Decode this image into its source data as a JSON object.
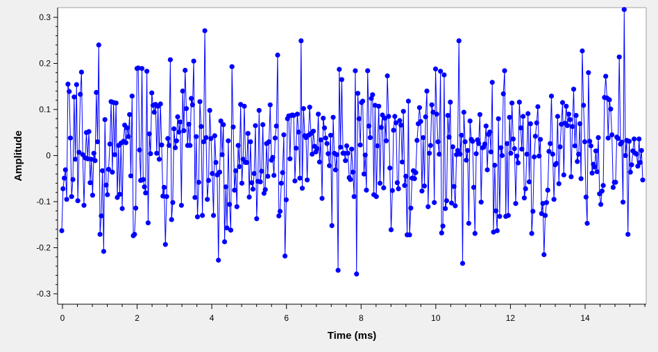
{
  "chart_data": {
    "type": "scatter",
    "title": "",
    "xlabel": "Time (ms)",
    "ylabel": "Amplitude",
    "xlim": [
      0,
      15.625
    ],
    "ylim": [
      -0.32,
      0.32
    ],
    "xticks": [
      "0",
      "2",
      "4",
      "6",
      "8",
      "10",
      "12",
      "14"
    ],
    "yticks": [
      "0.3",
      "0.2",
      "0.1",
      "0",
      "-0.1",
      "-0.2",
      "-0.3"
    ],
    "grid": false,
    "legend": "none",
    "colors": {
      "series": "#0000ff",
      "background": "#f0f0f0",
      "plot_background": "#ffffff",
      "axis": "#000000"
    },
    "series": [
      {
        "values": [
          -0.163,
          -0.072,
          -0.049,
          -0.031,
          -0.095,
          0.155,
          0.139,
          0.038,
          -0.089,
          -0.052,
          0.127,
          -0.008,
          0.154,
          -0.098,
          0.007,
          0.133,
          0.181,
          0.002,
          -0.108,
          -0.005,
          0.05,
          -0.007,
          0.052,
          -0.059,
          -0.008,
          -0.086,
          0.005,
          -0.011,
          0.137,
          0.03,
          0.24,
          -0.171,
          -0.131,
          -0.033,
          -0.208,
          0.078,
          -0.064,
          -0.085,
          -0.03,
          0.025,
          0.117,
          -0.036,
          0.115,
          0.002,
          0.114,
          -0.091,
          0.022,
          -0.084,
          0.027,
          -0.115,
          0.031,
          0.066,
          0.028,
          0.06,
          0.041,
          0.089,
          -0.044,
          0.129,
          -0.174,
          -0.171,
          -0.114,
          0.189,
          0.19,
          0.012,
          -0.054,
          0.189,
          -0.052,
          -0.068,
          -0.081,
          0.183,
          -0.146,
          0.047,
          0.004,
          0.136,
          0.109,
          0.094,
          0.111,
          0.005,
          0.107,
          -0.008,
          0.112,
          0.023,
          -0.088,
          -0.069,
          -0.193,
          -0.089,
          0.037,
          0.022,
          0.208,
          -0.139,
          -0.102,
          0.058,
          0.017,
          0.032,
          0.084,
          0.051,
          0.073,
          -0.108,
          0.14,
          0.054,
          0.185,
          0.102,
          0.022,
          0.068,
          0.022,
          0.124,
          0.11,
          0.205,
          -0.091,
          0.041,
          -0.133,
          -0.058,
          0.117,
          0.063,
          -0.13,
          0.03,
          0.271,
          0.039,
          -0.095,
          -0.054,
          0.098,
          0.037,
          -0.039,
          -0.13,
          0.043,
          -0.015,
          -0.042,
          -0.227,
          -0.036,
          0.075,
          0.002,
          0.067,
          -0.187,
          -0.068,
          -0.157,
          0.032,
          -0.106,
          -0.162,
          0.193,
          0.062,
          -0.075,
          -0.033,
          -0.111,
          0.022,
          -0.024,
          0.111,
          -0.06,
          -0.008,
          0.107,
          -0.015,
          -0.015,
          0.048,
          -0.09,
          0.03,
          -0.059,
          -0.073,
          -0.039,
          0.065,
          -0.137,
          -0.056,
          0.098,
          -0.057,
          -0.034,
          0.067,
          -0.082,
          -0.074,
          0.026,
          -0.045,
          0.03,
          0.11,
          -0.01,
          -0.004,
          -0.043,
          0.038,
          0.064,
          0.218,
          -0.131,
          -0.121,
          -0.06,
          -0.037,
          0.045,
          -0.218,
          -0.096,
          0.08,
          0.086,
          -0.007,
          0.087,
          0.088,
          0.087,
          -0.055,
          0.016,
          0.09,
          0.051,
          -0.049,
          0.249,
          -0.071,
          0.102,
          0.043,
          0.039,
          -0.053,
          0.044,
          0.105,
          0.048,
          0.003,
          0.053,
          0.02,
          0.008,
          0.015,
          0.09,
          -0.014,
          0.034,
          -0.093,
          0.081,
          0.06,
          0.038,
          0.026,
          0.004,
          -0.022,
          0.044,
          -0.152,
          0.083,
          0.005,
          -0.031,
          0.002,
          -0.249,
          0.187,
          0.018,
          0.165,
          0.005,
          0.005,
          -0.011,
          0.021,
          0.005,
          -0.048,
          -0.052,
          0.014,
          -0.036,
          -0.089,
          0.184,
          -0.257,
          0.135,
          0.08,
          0.023,
          0.115,
          0.118,
          -0.04,
          0.001,
          -0.075,
          0.184,
          0.064,
          0.039,
          0.124,
          0.132,
          -0.085,
          0.109,
          -0.089,
          0.021,
          0.107,
          -0.06,
          0.061,
          0.088,
          -0.07,
          0.081,
          0.032,
          0.173,
          0.085,
          -0.027,
          -0.161,
          -0.076,
          0.055,
          0.085,
          0.071,
          -0.059,
          -0.072,
          0.076,
          0.066,
          -0.014,
          0.096,
          -0.065,
          -0.045,
          -0.172,
          0.118,
          -0.172,
          -0.114,
          -0.049,
          -0.033,
          -0.05,
          -0.037,
          0.033,
          0.069,
          0.104,
          0.074,
          -0.077,
          0.039,
          -0.066,
          0.084,
          0.14,
          -0.111,
          0.005,
          0.022,
          0.11,
          0.094,
          -0.102,
          0.188,
          0.09,
          0.03,
          0.003,
          0.183,
          -0.168,
          -0.153,
          0.175,
          -0.115,
          -0.098,
          0.087,
          0.04,
          0.116,
          -0.103,
          0.019,
          -0.067,
          -0.109,
          0.002,
          0.011,
          0.249,
          0.003,
          0.044,
          -0.234,
          0.094,
          0.03,
          -0.01,
          0.011,
          -0.147,
          0.075,
          0.035,
          0.031,
          -0.069,
          -0.169,
          0.004,
          0.034,
          0.026,
          0.089,
          -0.101,
          0.017,
          0.018,
          0.025,
          0.064,
          -0.031,
          0.046,
          0.051,
          0.008,
          0.159,
          -0.166,
          -0.021,
          -0.12,
          -0.163,
          0.08,
          -0.132,
          0.017,
          0.0,
          0.134,
          0.184,
          -0.132,
          0.026,
          -0.13,
          0.083,
          0.005,
          0.114,
          0.036,
          0.015,
          -0.104,
          -0.001,
          -0.016,
          0.116,
          0.06,
          0.014,
          0.085,
          -0.092,
          -0.072,
          0.003,
          0.091,
          -0.057,
          0.069,
          -0.169,
          -0.121,
          -0.003,
          0.042,
          0.071,
          0.106,
          -0.001,
          0.035,
          -0.126,
          -0.104,
          -0.215,
          -0.13,
          -0.102,
          -0.075,
          0.009,
          0.026,
          0.129,
          0.003,
          -0.095,
          -0.02,
          -0.017,
          0.085,
          -0.061,
          0.019,
          0.068,
          0.115,
          -0.042,
          0.07,
          0.107,
          0.065,
          0.09,
          0.078,
          -0.046,
          0.063,
          0.144,
          0.021,
          0.087,
          -0.013,
          0.003,
          0.069,
          -0.05,
          0.227,
          0.109,
          0.03,
          -0.09,
          -0.147,
          0.18,
          0.031,
          0.021,
          -0.038,
          -0.019,
          -0.025,
          0.01,
          -0.035,
          0.039,
          -0.083,
          -0.106,
          -0.077,
          -0.065,
          0.126,
          0.172,
          0.125,
          0.038,
          0.121,
          0.101,
          0.045,
          -0.069,
          -0.058,
          -0.058,
          0.04,
          0.037,
          0.214,
          0.025,
          0.029,
          -0.101,
          0.317,
          0.0,
          0.033,
          -0.171,
          0.031,
          -0.036,
          -0.02,
          0.01,
          0.036,
          0.005,
          0.003,
          -0.023,
          0.036,
          -0.015,
          0.011,
          -0.053
        ]
      }
    ]
  }
}
